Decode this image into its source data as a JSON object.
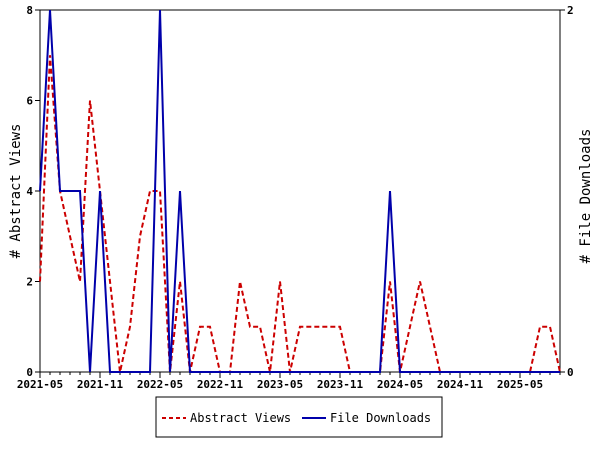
{
  "chart_data": {
    "type": "line",
    "ylabel_left": "# Abstract Views",
    "ylabel_right": "# File Downloads",
    "x_tick_labels": [
      "2021-05",
      "2021-11",
      "2022-05",
      "2022-11",
      "2023-05",
      "2023-11",
      "2024-05",
      "2024-11",
      "2025-05"
    ],
    "x_range_months": [
      "2021-05",
      "2025-08"
    ],
    "y_left_ticks": [
      "0",
      "2",
      "4",
      "6",
      "8"
    ],
    "y_left_range": [
      0,
      8
    ],
    "y_right_ticks": [
      "0",
      "2"
    ],
    "y_right_range": [
      0,
      2
    ],
    "legend_position": "bottom-center",
    "series": [
      {
        "name": "Abstract Views",
        "axis": "left",
        "color": "#cc0000",
        "style": "dashed",
        "values": [
          2,
          7,
          4,
          3,
          2,
          6,
          4,
          2,
          0,
          1,
          3,
          4,
          4,
          0,
          2,
          0,
          1,
          1,
          0,
          0,
          2,
          1,
          1,
          0,
          2,
          0,
          1,
          1,
          1,
          1,
          1,
          0,
          0,
          0,
          0,
          2,
          0,
          1,
          2,
          1,
          0,
          0,
          0,
          0,
          0,
          0,
          0,
          0,
          0,
          0,
          1,
          1,
          0
        ]
      },
      {
        "name": "File Downloads",
        "axis": "right",
        "color": "#0000aa",
        "style": "solid",
        "values": [
          1,
          2,
          1,
          1,
          1,
          0,
          1,
          0,
          0,
          0,
          0,
          0,
          2,
          0,
          1,
          0,
          0,
          0,
          0,
          0,
          0,
          0,
          0,
          0,
          0,
          0,
          0,
          0,
          0,
          0,
          0,
          0,
          0,
          0,
          0,
          1,
          0,
          0,
          0,
          0,
          0,
          0,
          0,
          0,
          0,
          0,
          0,
          0,
          0,
          0,
          0,
          0,
          0
        ]
      }
    ]
  }
}
